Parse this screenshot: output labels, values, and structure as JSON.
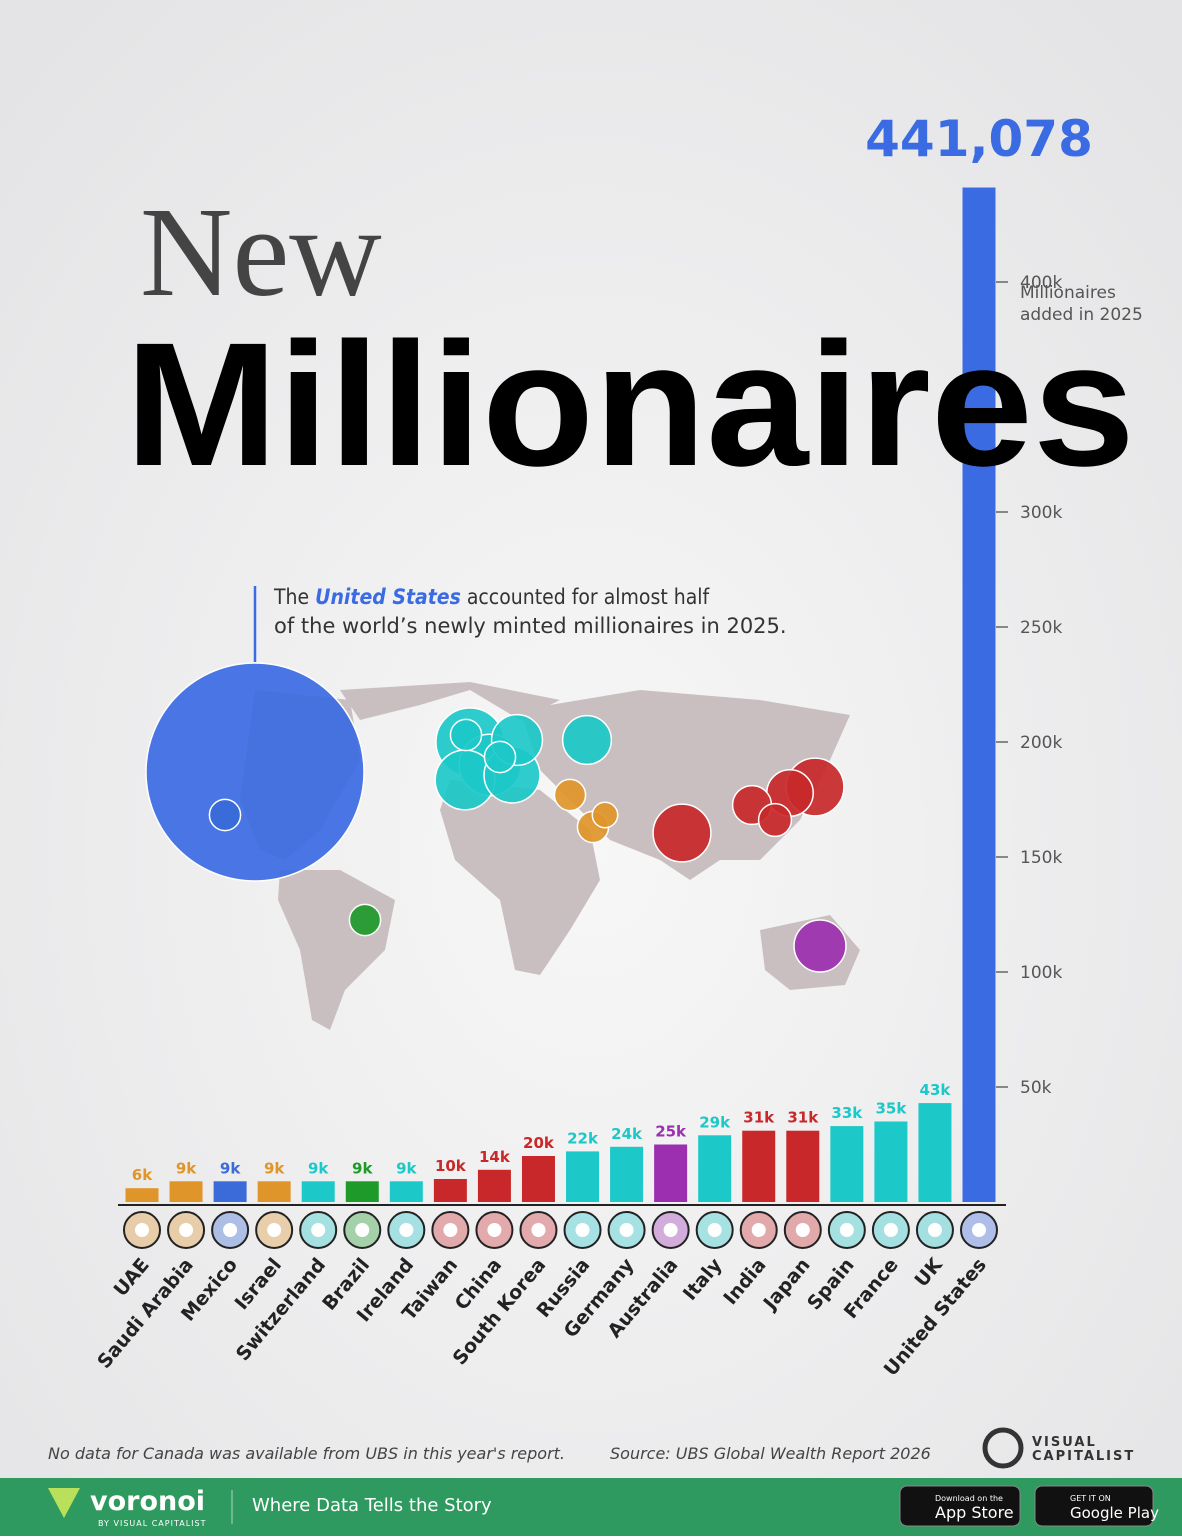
{
  "chart_data": {
    "type": "bar",
    "title": [
      "New",
      "Millionaires"
    ],
    "annotation": [
      "The ",
      "United States",
      " accounted for almost half",
      "of the world’s newly minted millionaires in 2025."
    ],
    "y_axis_label": [
      "Millionaires",
      "added in 2025"
    ],
    "categories": [
      "UAE",
      "Saudi Arabia",
      "Mexico",
      "Israel",
      "Switzerland",
      "Brazil",
      "Ireland",
      "Taiwan",
      "China",
      "South Korea",
      "Russia",
      "Germany",
      "Australia",
      "Italy",
      "India",
      "Japan",
      "Spain",
      "France",
      "UK",
      "United States"
    ],
    "values": [
      6000,
      9000,
      9000,
      9000,
      9000,
      9000,
      9000,
      10000,
      14000,
      20000,
      22000,
      24000,
      25000,
      29000,
      31000,
      31000,
      33000,
      35000,
      43000,
      441078
    ],
    "value_labels": [
      "6k",
      "9k",
      "9k",
      "9k",
      "9k",
      "9k",
      "9k",
      "10k",
      "14k",
      "20k",
      "22k",
      "24k",
      "25k",
      "29k",
      "31k",
      "31k",
      "33k",
      "35k",
      "43k",
      "441,078"
    ],
    "colors": [
      "#e0952a",
      "#e0952a",
      "#3a6bd8",
      "#e0952a",
      "#1cc8c8",
      "#1e9a2a",
      "#1cc8c8",
      "#c8282a",
      "#c8282a",
      "#c8282a",
      "#1cc8c8",
      "#1cc8c8",
      "#9b2fb0",
      "#1cc8c8",
      "#c8282a",
      "#c8282a",
      "#1cc8c8",
      "#1cc8c8",
      "#1cc8c8",
      "#3b6be3"
    ],
    "ylim": [
      0,
      450000
    ],
    "yticks": [
      {
        "value": 50000,
        "label": "50k"
      },
      {
        "value": 100000,
        "label": "100k"
      },
      {
        "value": 150000,
        "label": "150k"
      },
      {
        "value": 200000,
        "label": "200k"
      },
      {
        "value": 250000,
        "label": "250k"
      },
      {
        "value": 300000,
        "label": "300k"
      },
      {
        "value": 400000,
        "label": "400k"
      }
    ],
    "note": "No data for Canada was available from UBS in this year's report.",
    "source": "Source: UBS Global Wealth Report 2026",
    "branding": {
      "publisher": [
        "VISUAL",
        "CAPITALIST"
      ],
      "platform": "voronoi",
      "platform_by": "BY VISUAL CAPITALIST",
      "tagline": "Where Data Tells the Story",
      "app_store": [
        "Download on the",
        "App Store"
      ],
      "google_play": [
        "GET IT ON",
        "Google Play"
      ]
    }
  }
}
